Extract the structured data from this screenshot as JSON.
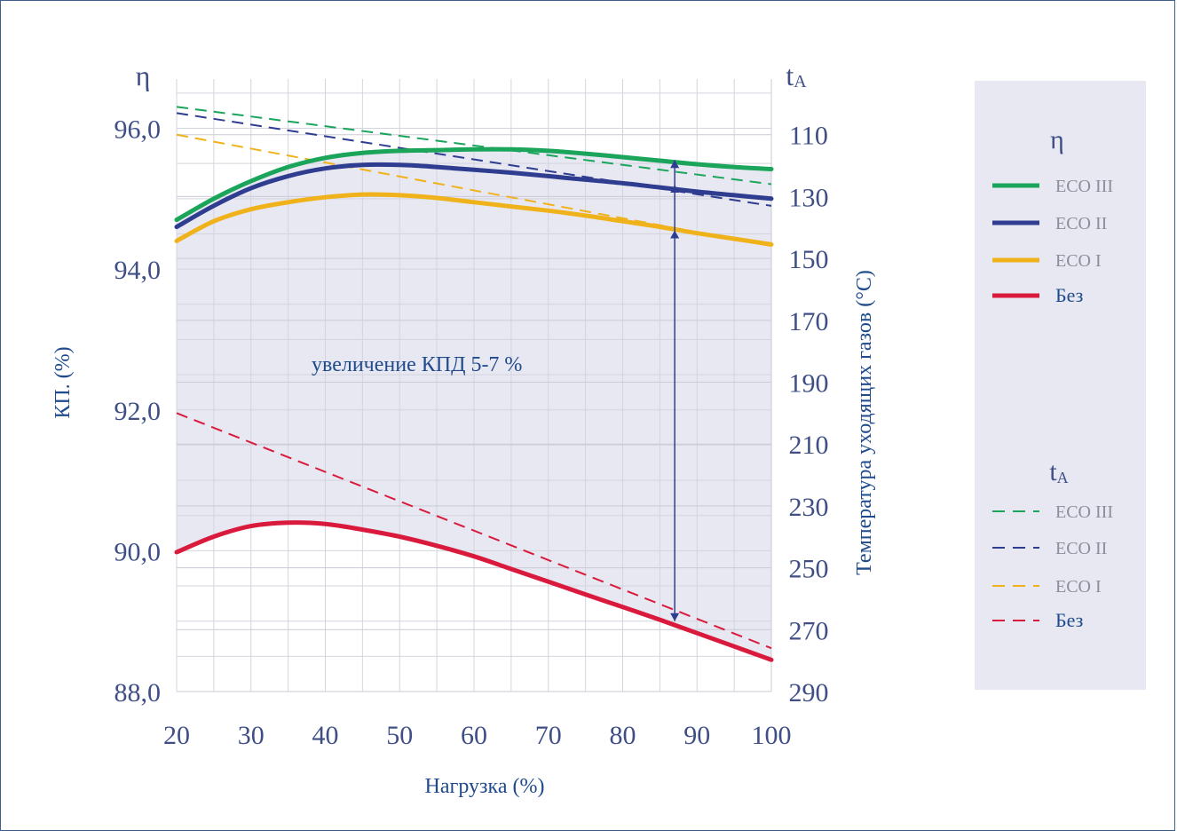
{
  "chart_data": {
    "type": "line",
    "x_label": "Нагрузка (%)",
    "y_label_left": "КП. (%)",
    "y_label_right": "Температура уходящих газов (°C)",
    "y_symbol_left": "η",
    "y_symbol_right": "tA",
    "x_ticks": [
      20,
      30,
      40,
      50,
      60,
      70,
      80,
      90,
      100
    ],
    "y_left_ticks": [
      "88,0",
      "90,0",
      "92,0",
      "94,0",
      "96,0"
    ],
    "y_right_ticks": [
      "110",
      "130",
      "150",
      "170",
      "190",
      "210",
      "230",
      "250",
      "270",
      "290"
    ],
    "x_range": [
      20,
      100
    ],
    "y_left_range": [
      88,
      96.7
    ],
    "y_right_range": [
      92,
      290
    ],
    "annotation": "увеличение КПД 5-7 %",
    "arrow_x": 87,
    "arrow_levels": [
      89,
      94.55,
      95.2,
      95.55
    ],
    "legend_eta": {
      "title": "η",
      "items": [
        "ECO III",
        "ECO II",
        "ECO I",
        "Без"
      ]
    },
    "legend_t": {
      "title": "tA",
      "items": [
        "ECO III",
        "ECO II",
        "ECO I",
        "Без"
      ]
    },
    "colors": {
      "eco3": "#1aa55b",
      "eco2": "#2e3d8f",
      "eco1": "#f0b21b",
      "bez": "#d91a3c",
      "plot_bg": "#e8e8f3",
      "arrow": "#2e3d8f"
    },
    "series_eta": [
      {
        "name": "ECO III",
        "color": "#1aa55b",
        "x": [
          20,
          25,
          30,
          35,
          40,
          45,
          50,
          55,
          60,
          65,
          70,
          75,
          80,
          85,
          90,
          95,
          100
        ],
        "y": [
          94.7,
          95.0,
          95.25,
          95.45,
          95.58,
          95.65,
          95.68,
          95.69,
          95.7,
          95.7,
          95.68,
          95.64,
          95.59,
          95.54,
          95.49,
          95.45,
          95.42
        ]
      },
      {
        "name": "ECO II",
        "color": "#2e3d8f",
        "x": [
          20,
          25,
          30,
          35,
          40,
          45,
          50,
          55,
          60,
          65,
          70,
          75,
          80,
          85,
          90,
          95,
          100
        ],
        "y": [
          94.6,
          94.9,
          95.15,
          95.32,
          95.43,
          95.48,
          95.48,
          95.45,
          95.41,
          95.37,
          95.32,
          95.27,
          95.22,
          95.16,
          95.1,
          95.05,
          95.0
        ]
      },
      {
        "name": "ECO I",
        "color": "#f0b21b",
        "x": [
          20,
          25,
          30,
          35,
          40,
          45,
          50,
          55,
          60,
          65,
          70,
          75,
          80,
          85,
          90,
          95,
          100
        ],
        "y": [
          94.4,
          94.68,
          94.85,
          94.95,
          95.02,
          95.06,
          95.05,
          95.01,
          94.95,
          94.89,
          94.83,
          94.76,
          94.68,
          94.6,
          94.51,
          94.43,
          94.35
        ]
      },
      {
        "name": "Без",
        "color": "#d91a3c",
        "x": [
          20,
          25,
          30,
          35,
          40,
          45,
          50,
          55,
          60,
          65,
          70,
          75,
          80,
          85,
          90,
          95,
          100
        ],
        "y": [
          89.98,
          90.2,
          90.35,
          90.4,
          90.38,
          90.3,
          90.2,
          90.07,
          89.92,
          89.74,
          89.56,
          89.38,
          89.2,
          89.02,
          88.83,
          88.64,
          88.45
        ]
      }
    ],
    "series_t": [
      {
        "name": "ECO III",
        "color": "#1aa55b",
        "x": [
          20,
          100
        ],
        "y": [
          101,
          126
        ]
      },
      {
        "name": "ECO II",
        "color": "#2e3d8f",
        "x": [
          20,
          100
        ],
        "y": [
          103,
          133
        ]
      },
      {
        "name": "ECO I",
        "color": "#f0b21b",
        "x": [
          20,
          100
        ],
        "y": [
          110,
          146
        ]
      },
      {
        "name": "Без",
        "color": "#d91a3c",
        "x": [
          20,
          100
        ],
        "y": [
          200,
          276
        ]
      }
    ]
  }
}
